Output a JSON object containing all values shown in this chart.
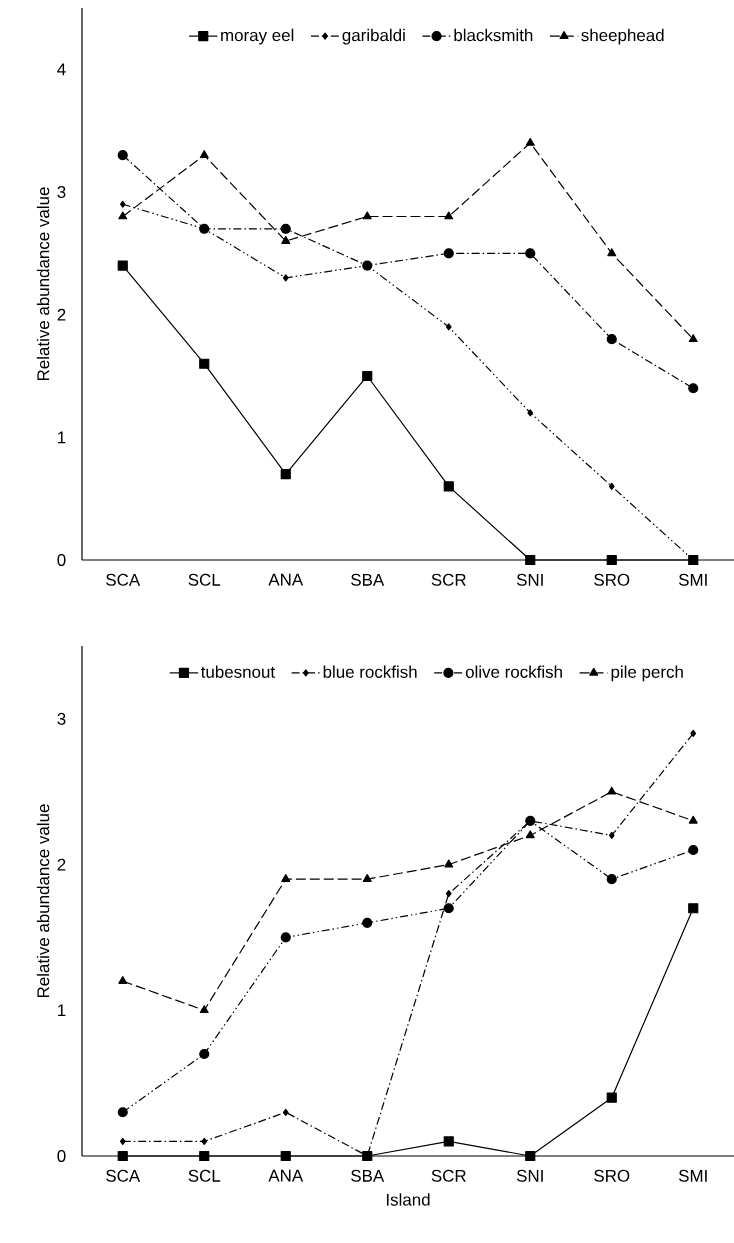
{
  "chart_data": [
    {
      "type": "line",
      "ylabel": "Relative abundance value",
      "categories": [
        "SCA",
        "SCL",
        "ANA",
        "SBA",
        "SCR",
        "SNI",
        "SRO",
        "SMI"
      ],
      "ylim": [
        0,
        4.5
      ],
      "yticks": [
        0,
        1,
        2,
        3,
        4
      ],
      "legend": "top",
      "grid": false,
      "series": [
        {
          "name": "moray eel",
          "color": "#000000",
          "marker": "square",
          "line_style": "solid",
          "values": [
            2.4,
            1.6,
            0.7,
            1.5,
            0.6,
            0,
            0,
            0
          ]
        },
        {
          "name": "garibaldi",
          "color": "#000000",
          "marker": "diamond",
          "line_style": "dashdotdot",
          "values": [
            2.9,
            2.7,
            2.3,
            2.4,
            1.9,
            1.2,
            0.6,
            0
          ]
        },
        {
          "name": "blacksmith",
          "color": "#000000",
          "marker": "circle",
          "line_style": "dashdot",
          "values": [
            3.3,
            2.7,
            2.7,
            2.4,
            2.5,
            2.5,
            1.8,
            1.4
          ]
        },
        {
          "name": "sheephead",
          "color": "#000000",
          "marker": "triangle",
          "line_style": "dashed",
          "values": [
            2.8,
            3.3,
            2.6,
            2.8,
            2.8,
            3.4,
            2.5,
            1.8
          ]
        }
      ]
    },
    {
      "type": "line",
      "xlabel": "Island",
      "ylabel": "Relative abundance value",
      "categories": [
        "SCA",
        "SCL",
        "ANA",
        "SBA",
        "SCR",
        "SNI",
        "SRO",
        "SMI"
      ],
      "ylim": [
        0,
        3.5
      ],
      "yticks": [
        0,
        1,
        2,
        3
      ],
      "legend": "top",
      "grid": false,
      "series": [
        {
          "name": "tubesnout",
          "color": "#000000",
          "marker": "square",
          "line_style": "solid",
          "values": [
            0,
            0,
            0,
            0,
            0.1,
            0,
            0.4,
            1.7
          ]
        },
        {
          "name": "blue rockfish",
          "color": "#000000",
          "marker": "diamond",
          "line_style": "dashdot",
          "values": [
            0.1,
            0.1,
            0.3,
            0,
            1.8,
            2.3,
            2.2,
            2.9
          ]
        },
        {
          "name": "olive rockfish",
          "color": "#000000",
          "marker": "circle",
          "line_style": "dashdotdot",
          "values": [
            0.3,
            0.7,
            1.5,
            1.6,
            1.7,
            2.3,
            1.9,
            2.1
          ]
        },
        {
          "name": "pile perch",
          "color": "#000000",
          "marker": "triangle",
          "line_style": "dashed",
          "values": [
            1.2,
            1.0,
            1.9,
            1.9,
            2.0,
            2.2,
            2.5,
            2.3
          ]
        }
      ]
    }
  ]
}
